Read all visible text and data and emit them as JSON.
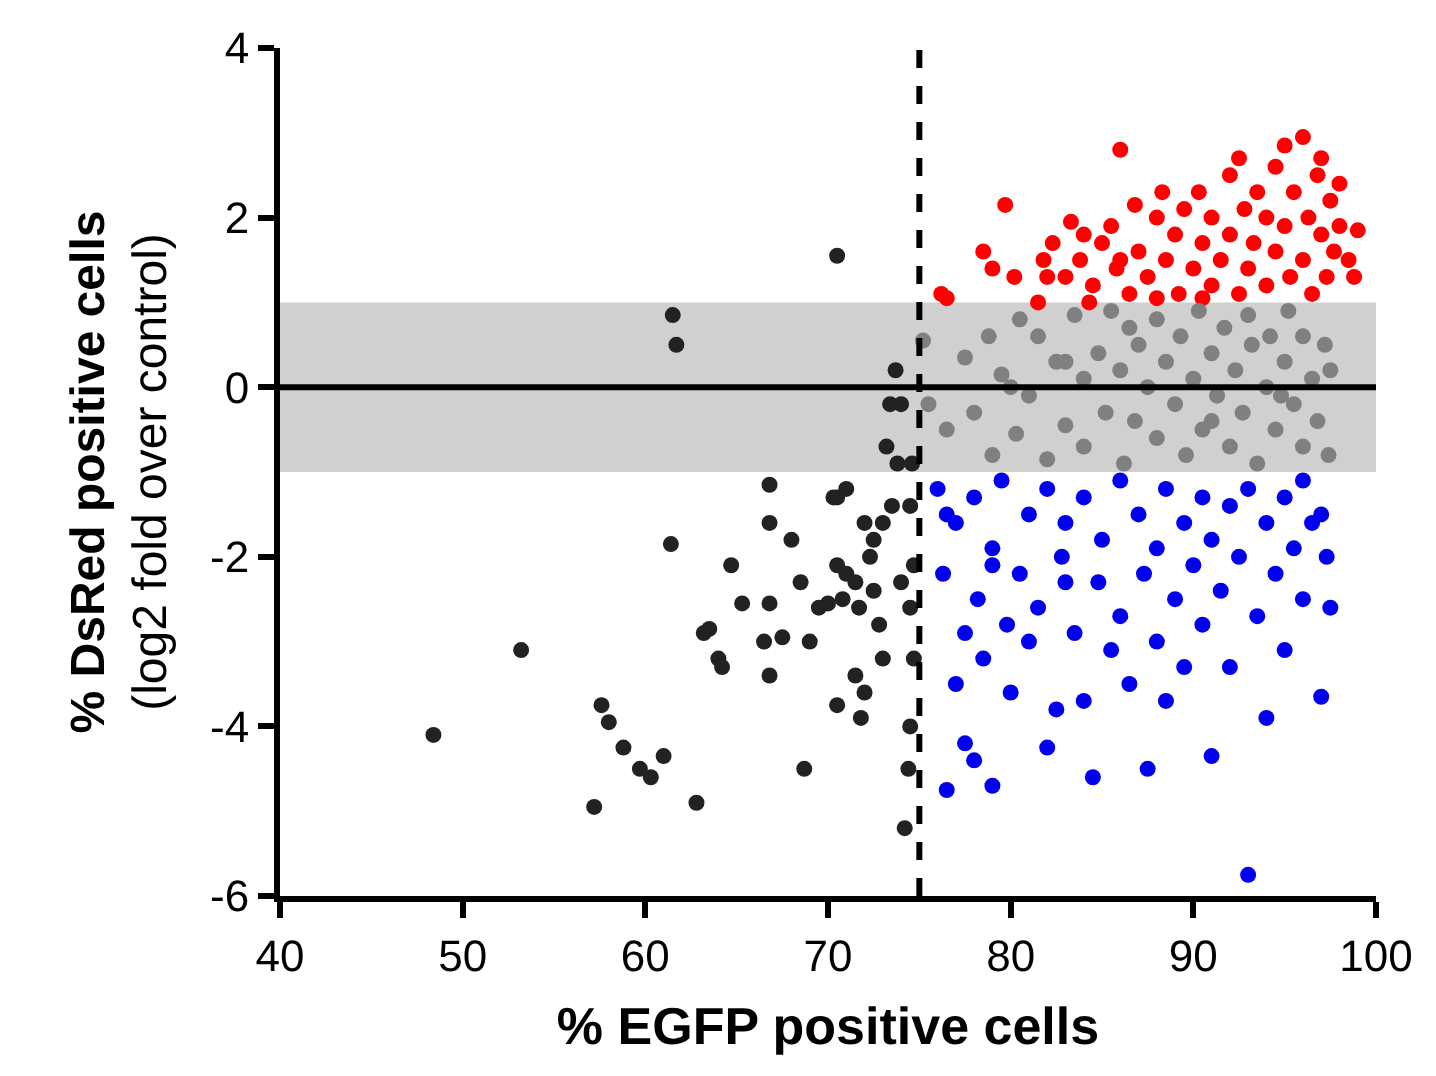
{
  "chart_data": {
    "type": "scatter",
    "xlabel": "% EGFP positive cells",
    "ylabel": "% DsRed positive cells\n(log2 fold over control)",
    "xlim": [
      40,
      100
    ],
    "xticks": [
      40,
      50,
      60,
      70,
      80,
      90,
      100
    ],
    "ylim": [
      -6,
      4
    ],
    "yticks": [
      -6,
      -4,
      -2,
      0,
      2,
      4
    ],
    "grid": false,
    "marker": "circle",
    "ref_lines": [
      {
        "axis": "x",
        "value": 75,
        "color": "#000000",
        "line_style": "dashed"
      },
      {
        "axis": "y",
        "value": 0,
        "color": "#000000",
        "line_style": "solid"
      }
    ],
    "bands": [
      {
        "axis": "y",
        "from": -1,
        "to": 1,
        "color": "#d0d0d0"
      }
    ],
    "series": [
      {
        "color": "#222222",
        "x": [
          48.4,
          53.2,
          57.2,
          57.6,
          58,
          58.8,
          59.7,
          60.3,
          61,
          61.5,
          61.7,
          61.4,
          62.8,
          63.2,
          63.5,
          64,
          64.2,
          64.7,
          65.3,
          66.5,
          66.8,
          66.8,
          66.8,
          66.8,
          67.5,
          68,
          68.5,
          68.7,
          69,
          70,
          70.3,
          70.5,
          70.5,
          70.5,
          70.5,
          71,
          71,
          71.5,
          71.5,
          71.8,
          72,
          72,
          72.5,
          72.5,
          72.8,
          73,
          73,
          73.5,
          73.2,
          73.7,
          73.4,
          74,
          74,
          74.5,
          74.6,
          74.7,
          74.7,
          74.5,
          74.4,
          74.2,
          74.5,
          73.8,
          72.3,
          71.7,
          70.8,
          69.5
        ],
        "values": [
          -4.1,
          -3.1,
          -4.95,
          -3.75,
          -3.95,
          -4.25,
          -4.5,
          -4.6,
          -4.35,
          0.85,
          0.5,
          -1.85,
          -4.9,
          -2.9,
          -2.85,
          -3.2,
          -3.3,
          -2.1,
          -2.55,
          -3.0,
          -1.6,
          -1.15,
          -2.55,
          -3.4,
          -2.95,
          -1.8,
          -2.3,
          -4.5,
          -3.0,
          -2.55,
          -1.3,
          -1.3,
          -3.75,
          -2.1,
          1.55,
          -1.2,
          -2.2,
          -2.3,
          -3.4,
          -3.9,
          -3.6,
          -1.6,
          -1.8,
          -2.4,
          -2.8,
          -1.6,
          -3.2,
          -1.4,
          -0.7,
          0.2,
          -0.2,
          -0.2,
          -2.3,
          -1.4,
          -0.9,
          -2.1,
          -3.2,
          -4.0,
          -4.5,
          -5.2,
          -2.6,
          -0.9,
          -2.0,
          -2.6,
          -2.5,
          -2.6
        ]
      },
      {
        "color": "#ff0000",
        "x": [
          76.2,
          76.5,
          78.5,
          79,
          79.7,
          80.2,
          81.5,
          81.8,
          82,
          82.3,
          83,
          83.3,
          83.8,
          84.3,
          84.5,
          85,
          85.5,
          85.8,
          86,
          86.5,
          86.8,
          87,
          87.5,
          88,
          88.3,
          88.5,
          89,
          89.2,
          89.5,
          90,
          90.3,
          90.5,
          91,
          91,
          91.5,
          92,
          92,
          92.5,
          92.8,
          93,
          93.3,
          93.5,
          94,
          94,
          94.5,
          94.5,
          95,
          95,
          95.3,
          95.5,
          96,
          96,
          96.3,
          96.5,
          96.8,
          97,
          97,
          97.3,
          97.5,
          97.7,
          98,
          98,
          98.5,
          99,
          98.8,
          90.5,
          88,
          84,
          86,
          92.5
        ],
        "values": [
          1.1,
          1.05,
          1.6,
          1.4,
          2.15,
          1.3,
          1.0,
          1.5,
          1.3,
          1.7,
          1.3,
          1.95,
          1.5,
          1.0,
          1.2,
          1.7,
          1.9,
          1.4,
          2.8,
          1.1,
          2.15,
          1.6,
          1.3,
          2.0,
          2.3,
          1.5,
          1.8,
          1.1,
          2.1,
          1.4,
          2.3,
          1.7,
          2.0,
          1.2,
          1.5,
          2.5,
          1.8,
          1.1,
          2.1,
          1.4,
          1.7,
          2.3,
          1.2,
          2.0,
          2.6,
          1.6,
          2.85,
          1.9,
          1.3,
          2.3,
          2.95,
          1.5,
          2.0,
          1.1,
          2.5,
          1.8,
          2.7,
          1.3,
          2.2,
          1.6,
          2.4,
          1.9,
          1.5,
          1.85,
          1.3,
          1.05,
          1.05,
          1.8,
          1.5,
          2.7
        ]
      },
      {
        "color": "#808080",
        "x": [
          75.2,
          75.5,
          76.5,
          77.5,
          78,
          78.8,
          79,
          79.5,
          80.3,
          80.5,
          81,
          81.5,
          82,
          82.5,
          83,
          83.5,
          84,
          84,
          84.8,
          85.2,
          85.5,
          86,
          86.2,
          86.8,
          87,
          87.5,
          88,
          88,
          88.5,
          89,
          89.3,
          89.6,
          90,
          90.3,
          90.5,
          91,
          91.3,
          91.7,
          92,
          92.3,
          92.7,
          93,
          93.2,
          93.5,
          94,
          94.2,
          94.5,
          95,
          95.2,
          95.5,
          96,
          96,
          96.5,
          96.8,
          97.2,
          97.4,
          97.5,
          86.5,
          83,
          80,
          91,
          94.8
        ],
        "values": [
          0.55,
          -0.2,
          -0.5,
          0.35,
          -0.3,
          0.6,
          -0.8,
          0.15,
          -0.55,
          0.8,
          -0.1,
          0.6,
          -0.85,
          0.3,
          -0.45,
          0.85,
          0.1,
          -0.7,
          0.4,
          -0.3,
          0.9,
          0.2,
          -0.9,
          -0.4,
          0.5,
          0.0,
          0.8,
          -0.6,
          0.3,
          -0.2,
          0.6,
          -0.8,
          0.1,
          0.9,
          -0.5,
          0.4,
          -0.1,
          0.7,
          -0.7,
          0.2,
          -0.3,
          0.85,
          0.5,
          -0.9,
          0.0,
          0.6,
          -0.5,
          0.3,
          0.9,
          -0.2,
          -0.7,
          0.6,
          0.1,
          -0.4,
          0.5,
          -0.8,
          0.2,
          0.7,
          0.3,
          0.0,
          -0.4,
          -0.1
        ]
      },
      {
        "color": "#0000ee",
        "x": [
          76,
          76.3,
          76.5,
          77,
          77,
          77.5,
          77.5,
          78,
          78,
          78.2,
          78.5,
          79,
          79,
          79.5,
          79.8,
          80,
          80.5,
          81,
          81,
          81.5,
          82,
          82,
          82.5,
          82.8,
          83,
          83.5,
          84,
          84,
          84.5,
          84.8,
          85,
          85.5,
          86,
          86,
          86.5,
          87,
          87.3,
          87.5,
          88,
          88,
          88.5,
          88.5,
          89,
          89.5,
          89.5,
          90,
          90.5,
          90.5,
          91,
          91,
          91.5,
          92,
          92,
          92.5,
          93,
          93,
          93.5,
          94,
          94,
          94.5,
          95,
          95,
          95.5,
          96,
          96,
          96.5,
          97,
          97,
          97.3,
          97.5,
          76.5,
          79,
          83
        ],
        "values": [
          -1.2,
          -2.2,
          -4.75,
          -1.6,
          -3.5,
          -2.9,
          -4.2,
          -1.3,
          -4.4,
          -2.5,
          -3.2,
          -1.9,
          -4.7,
          -1.1,
          -2.8,
          -3.6,
          -2.2,
          -1.5,
          -3.0,
          -2.6,
          -1.2,
          -4.25,
          -3.8,
          -2.0,
          -1.6,
          -2.9,
          -3.7,
          -1.3,
          -4.6,
          -2.3,
          -1.8,
          -3.1,
          -1.1,
          -2.7,
          -3.5,
          -1.5,
          -2.2,
          -4.5,
          -1.9,
          -3.0,
          -1.2,
          -3.7,
          -2.5,
          -1.6,
          -3.3,
          -2.1,
          -1.3,
          -2.8,
          -1.8,
          -4.35,
          -2.4,
          -1.4,
          -3.3,
          -2.0,
          -1.2,
          -5.75,
          -2.7,
          -1.6,
          -3.9,
          -2.2,
          -1.3,
          -3.1,
          -1.9,
          -1.1,
          -2.5,
          -1.6,
          -3.65,
          -1.5,
          -2.0,
          -2.6,
          -1.5,
          -2.1,
          -2.3
        ]
      }
    ]
  }
}
